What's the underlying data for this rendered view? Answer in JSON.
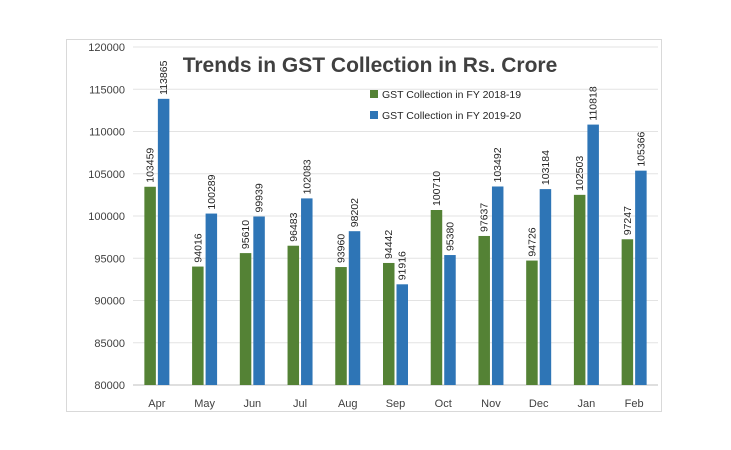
{
  "chart_data": {
    "type": "bar",
    "title": "Trends in GST Collection in Rs. Crore",
    "categories": [
      "Apr",
      "May",
      "Jun",
      "Jul",
      "Aug",
      "Sep",
      "Oct",
      "Nov",
      "Dec",
      "Jan",
      "Feb"
    ],
    "series": [
      {
        "name": "GST Collection in FY 2018-19",
        "color": "#548235",
        "values": [
          103459,
          94016,
          95610,
          96483,
          93960,
          94442,
          100710,
          97637,
          94726,
          102503,
          97247
        ]
      },
      {
        "name": "GST Collection in FY 2019-20",
        "color": "#2e75b6",
        "values": [
          113865,
          100289,
          99939,
          102083,
          98202,
          91916,
          95380,
          103492,
          103184,
          110818,
          105366
        ]
      }
    ],
    "ylim": [
      80000,
      120000
    ],
    "yticks": [
      "80000",
      "85000",
      "90000",
      "95000",
      "100000",
      "105000",
      "110000",
      "115000",
      "120000"
    ],
    "grid": true,
    "legend": "top-right"
  }
}
